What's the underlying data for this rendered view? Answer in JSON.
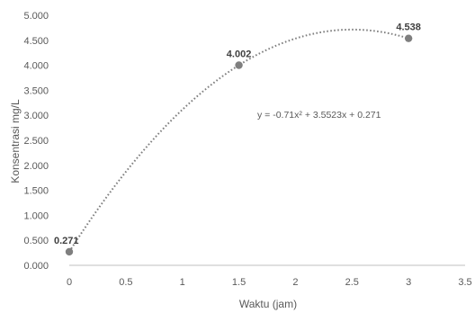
{
  "chart_data": {
    "type": "scatter",
    "title": "",
    "xlabel": "Waktu (jam)",
    "ylabel": "Konsentrasi mg/L",
    "xlim": [
      0,
      3.5
    ],
    "ylim": [
      0,
      5
    ],
    "x_ticks": [
      "0",
      "0.5",
      "1",
      "1.5",
      "2",
      "2.5",
      "3",
      "3.5"
    ],
    "y_ticks": [
      "0.000",
      "0.500",
      "1.000",
      "1.500",
      "2.000",
      "2.500",
      "3.000",
      "3.500",
      "4.000",
      "4.500",
      "5.000"
    ],
    "grid": false,
    "series": [
      {
        "x": [
          0,
          1.5,
          3
        ],
        "y": [
          0.271,
          4.002,
          4.538
        ],
        "labels": [
          "0.271",
          "4.002",
          "4.538"
        ],
        "color": "#7f7f7f"
      }
    ],
    "trendline": {
      "type": "polynomial",
      "order": 2,
      "coefficients": [
        -0.71,
        3.5523,
        0.271
      ],
      "equation": "y = -0.71x² + 3.5523x + 0.271",
      "style": "dotted",
      "color": "#7f7f7f"
    }
  }
}
